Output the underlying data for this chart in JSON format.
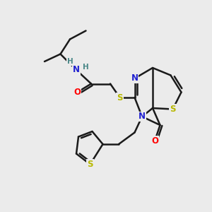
{
  "background_color": "#ebebeb",
  "atom_colors": {
    "N": "#2020d0",
    "O": "#ff0000",
    "S_yellow": "#b8b800",
    "C": "#000000",
    "H": "#4a8888"
  },
  "bond_color": "#1a1a1a",
  "bond_width": 1.8,
  "figsize": [
    3.0,
    3.0
  ],
  "dpi": 100,
  "xlim": [
    0,
    10
  ],
  "ylim": [
    0,
    10
  ]
}
